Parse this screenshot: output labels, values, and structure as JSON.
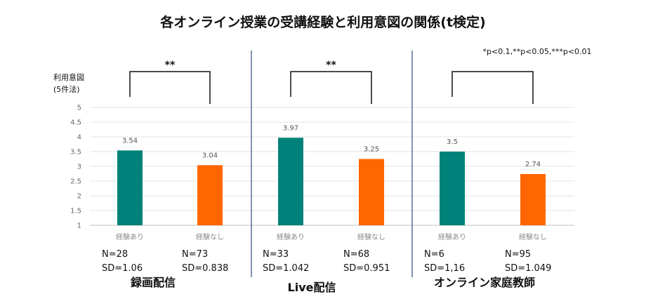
{
  "chart_data": {
    "type": "bar",
    "title": "各オンライン授業の受講経験と利用意図の関係(t検定)",
    "note": "*p<0.1,**p<0.05,***p<0.01",
    "ylabel_lines": [
      "利用意図",
      "(5件法)"
    ],
    "ylim": [
      1,
      5
    ],
    "yticks": [
      1,
      1.5,
      2,
      2.5,
      3,
      3.5,
      4,
      4.5,
      5
    ],
    "grid": true,
    "colors": {
      "経験あり": "#00827a",
      "経験なし": "#ff6600"
    },
    "groups": [
      {
        "name": "録画配信",
        "significance": "**",
        "bars": [
          {
            "category": "経験あり",
            "value": 3.54,
            "n": "N=28",
            "sd": "SD=1.06"
          },
          {
            "category": "経験なし",
            "value": 3.04,
            "n": "N=73",
            "sd": "SD=0.838"
          }
        ]
      },
      {
        "name": "Live配信",
        "significance": "**",
        "bars": [
          {
            "category": "経験あり",
            "value": 3.97,
            "n": "N=33",
            "sd": "SD=1.042"
          },
          {
            "category": "経験なし",
            "value": 3.25,
            "n": "N=68",
            "sd": "SD=0.951"
          }
        ]
      },
      {
        "name": "オンライン家庭教師",
        "significance": "",
        "bars": [
          {
            "category": "経験あり",
            "value": 3.5,
            "n": "N=6",
            "sd": "SD=1,16"
          },
          {
            "category": "経験なし",
            "value": 2.74,
            "n": "N=95",
            "sd": "SD=1.049"
          }
        ]
      }
    ]
  }
}
